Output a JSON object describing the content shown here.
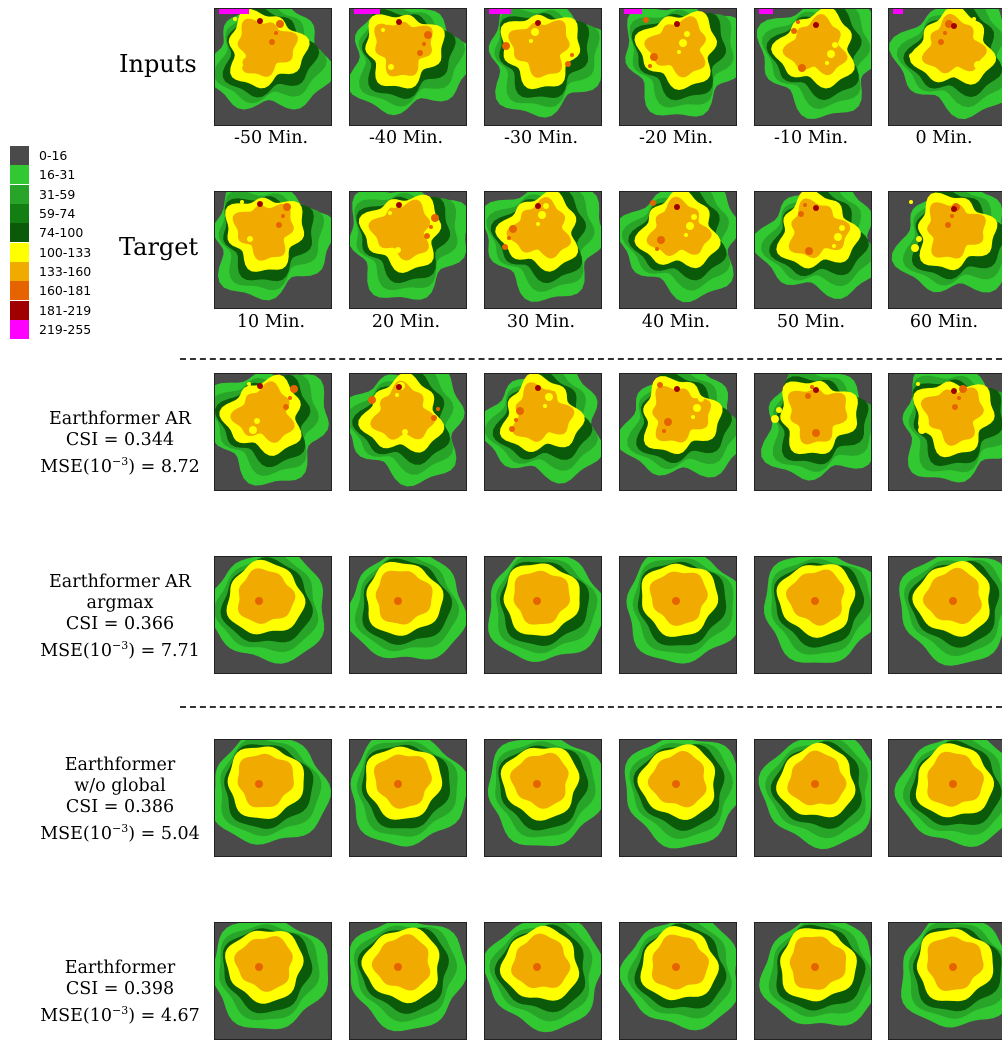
{
  "legend": {
    "items": [
      {
        "label": "0-16",
        "color": "#4a4a4a"
      },
      {
        "label": "16-31",
        "color": "#32c832"
      },
      {
        "label": "31-59",
        "color": "#28a528"
      },
      {
        "label": "59-74",
        "color": "#137f13"
      },
      {
        "label": "74-100",
        "color": "#0a5a0a"
      },
      {
        "label": "100-133",
        "color": "#ffff00"
      },
      {
        "label": "133-160",
        "color": "#f0aa00"
      },
      {
        "label": "160-181",
        "color": "#e66400"
      },
      {
        "label": "181-219",
        "color": "#a00000"
      },
      {
        "label": "219-255",
        "color": "#ff00ff"
      }
    ]
  },
  "rows": {
    "inputs": {
      "title": "Inputs",
      "times": [
        "-50 Min.",
        "-40 Min.",
        "-30 Min.",
        "-20 Min.",
        "-10 Min.",
        "0 Min."
      ]
    },
    "target": {
      "title": "Target",
      "times": [
        "10 Min.",
        "20 Min.",
        "30 Min.",
        "40 Min.",
        "50 Min.",
        "60 Min."
      ]
    },
    "ar": {
      "name": "Earthformer AR",
      "csi": "CSI = 0.344",
      "mse_prefix": "MSE(10",
      "mse_exp": "−3",
      "mse_suffix": ") = 8.72"
    },
    "ar_argmax": {
      "name": "Earthformer AR",
      "variant": "argmax",
      "csi": "CSI = 0.366",
      "mse_prefix": "MSE(10",
      "mse_exp": "−3",
      "mse_suffix": ") = 7.71"
    },
    "no_global": {
      "name": "Earthformer",
      "variant": "w/o global",
      "csi": "CSI = 0.386",
      "mse_prefix": "MSE(10",
      "mse_exp": "−3",
      "mse_suffix": ") = 5.04"
    },
    "full": {
      "name": "Earthformer",
      "csi": "CSI = 0.398",
      "mse_prefix": "MSE(10",
      "mse_exp": "−3",
      "mse_suffix": ") = 4.67"
    }
  }
}
